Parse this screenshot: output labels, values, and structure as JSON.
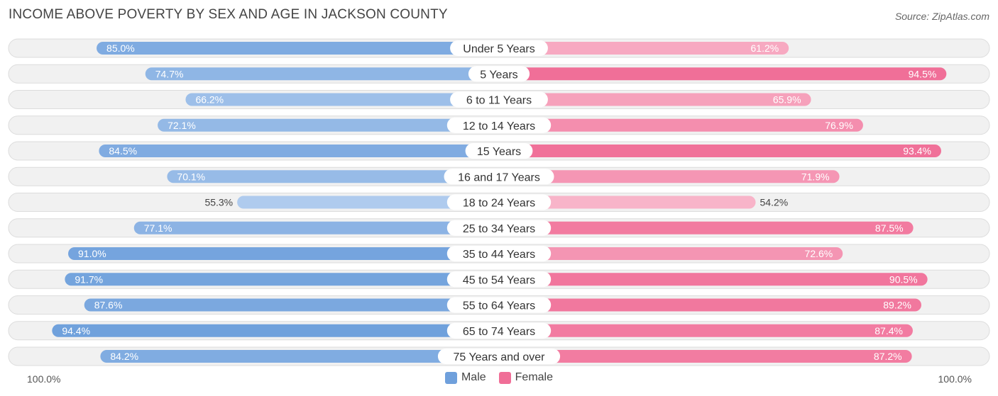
{
  "title": "INCOME ABOVE POVERTY BY SEX AND AGE IN JACKSON COUNTY",
  "source": "Source: ZipAtlas.com",
  "axis": {
    "left_label": "100.0%",
    "right_label": "100.0%"
  },
  "legend": {
    "male_label": "Male",
    "female_label": "Female"
  },
  "colors": {
    "male": "#6fa0dc",
    "female": "#f06e97",
    "male_light": "#afcbee",
    "female_light": "#f8b4c9",
    "track": "#f1f1f1",
    "track_border": "#dcdcdc"
  },
  "chart_data": {
    "type": "bar",
    "orientation": "horizontal-diverging",
    "title": "INCOME ABOVE POVERTY BY SEX AND AGE IN JACKSON COUNTY",
    "xlim": [
      0,
      100
    ],
    "categories": [
      "Under 5 Years",
      "5 Years",
      "6 to 11 Years",
      "12 to 14 Years",
      "15 Years",
      "16 and 17 Years",
      "18 to 24 Years",
      "25 to 34 Years",
      "35 to 44 Years",
      "45 to 54 Years",
      "55 to 64 Years",
      "65 to 74 Years",
      "75 Years and over"
    ],
    "series": [
      {
        "name": "Male",
        "values": [
          85.0,
          74.7,
          66.2,
          72.1,
          84.5,
          70.1,
          55.3,
          77.1,
          91.0,
          91.7,
          87.6,
          94.4,
          84.2
        ]
      },
      {
        "name": "Female",
        "values": [
          61.2,
          94.5,
          65.9,
          76.9,
          93.4,
          71.9,
          54.2,
          87.5,
          72.6,
          90.5,
          89.2,
          87.4,
          87.2
        ]
      }
    ]
  }
}
